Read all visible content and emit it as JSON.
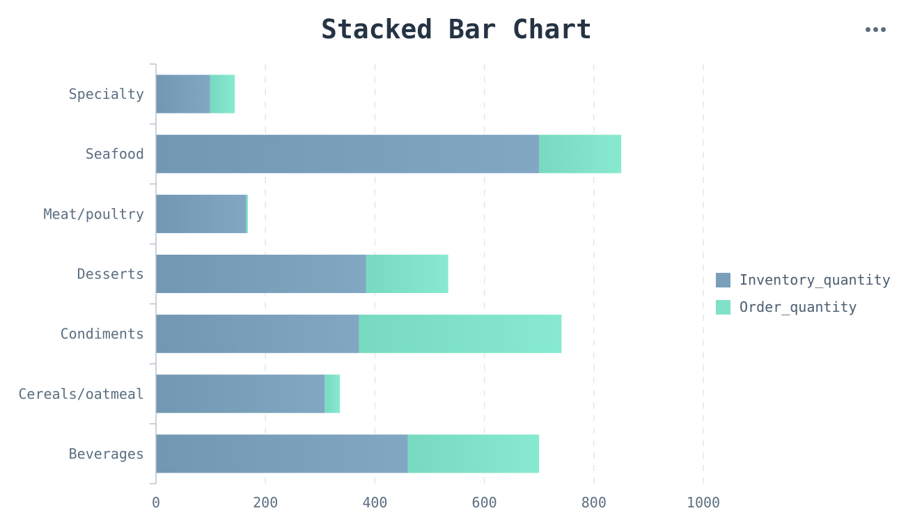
{
  "chart_data": {
    "type": "bar",
    "orientation": "horizontal",
    "stacked": true,
    "title": "Stacked Bar Chart",
    "categories": [
      "Beverages",
      "Cereals/oatmeal",
      "Condiments",
      "Desserts",
      "Meat/poultry",
      "Seafood",
      "Specialty"
    ],
    "series": [
      {
        "name": "Inventory_quantity",
        "color": "#7a9fbb",
        "values": [
          460,
          308,
          371,
          384,
          165,
          700,
          99
        ]
      },
      {
        "name": "Order_quantity",
        "color": "#7fe2c8",
        "values": [
          240,
          28,
          370,
          150,
          3,
          150,
          45
        ]
      }
    ],
    "xlim": [
      0,
      1000
    ],
    "x_ticks": [
      "0",
      "200",
      "400",
      "600",
      "800",
      "1000"
    ],
    "grid": true,
    "legend_position": "right"
  },
  "toolbar": {
    "more_icon": "more-horizontal-icon"
  }
}
